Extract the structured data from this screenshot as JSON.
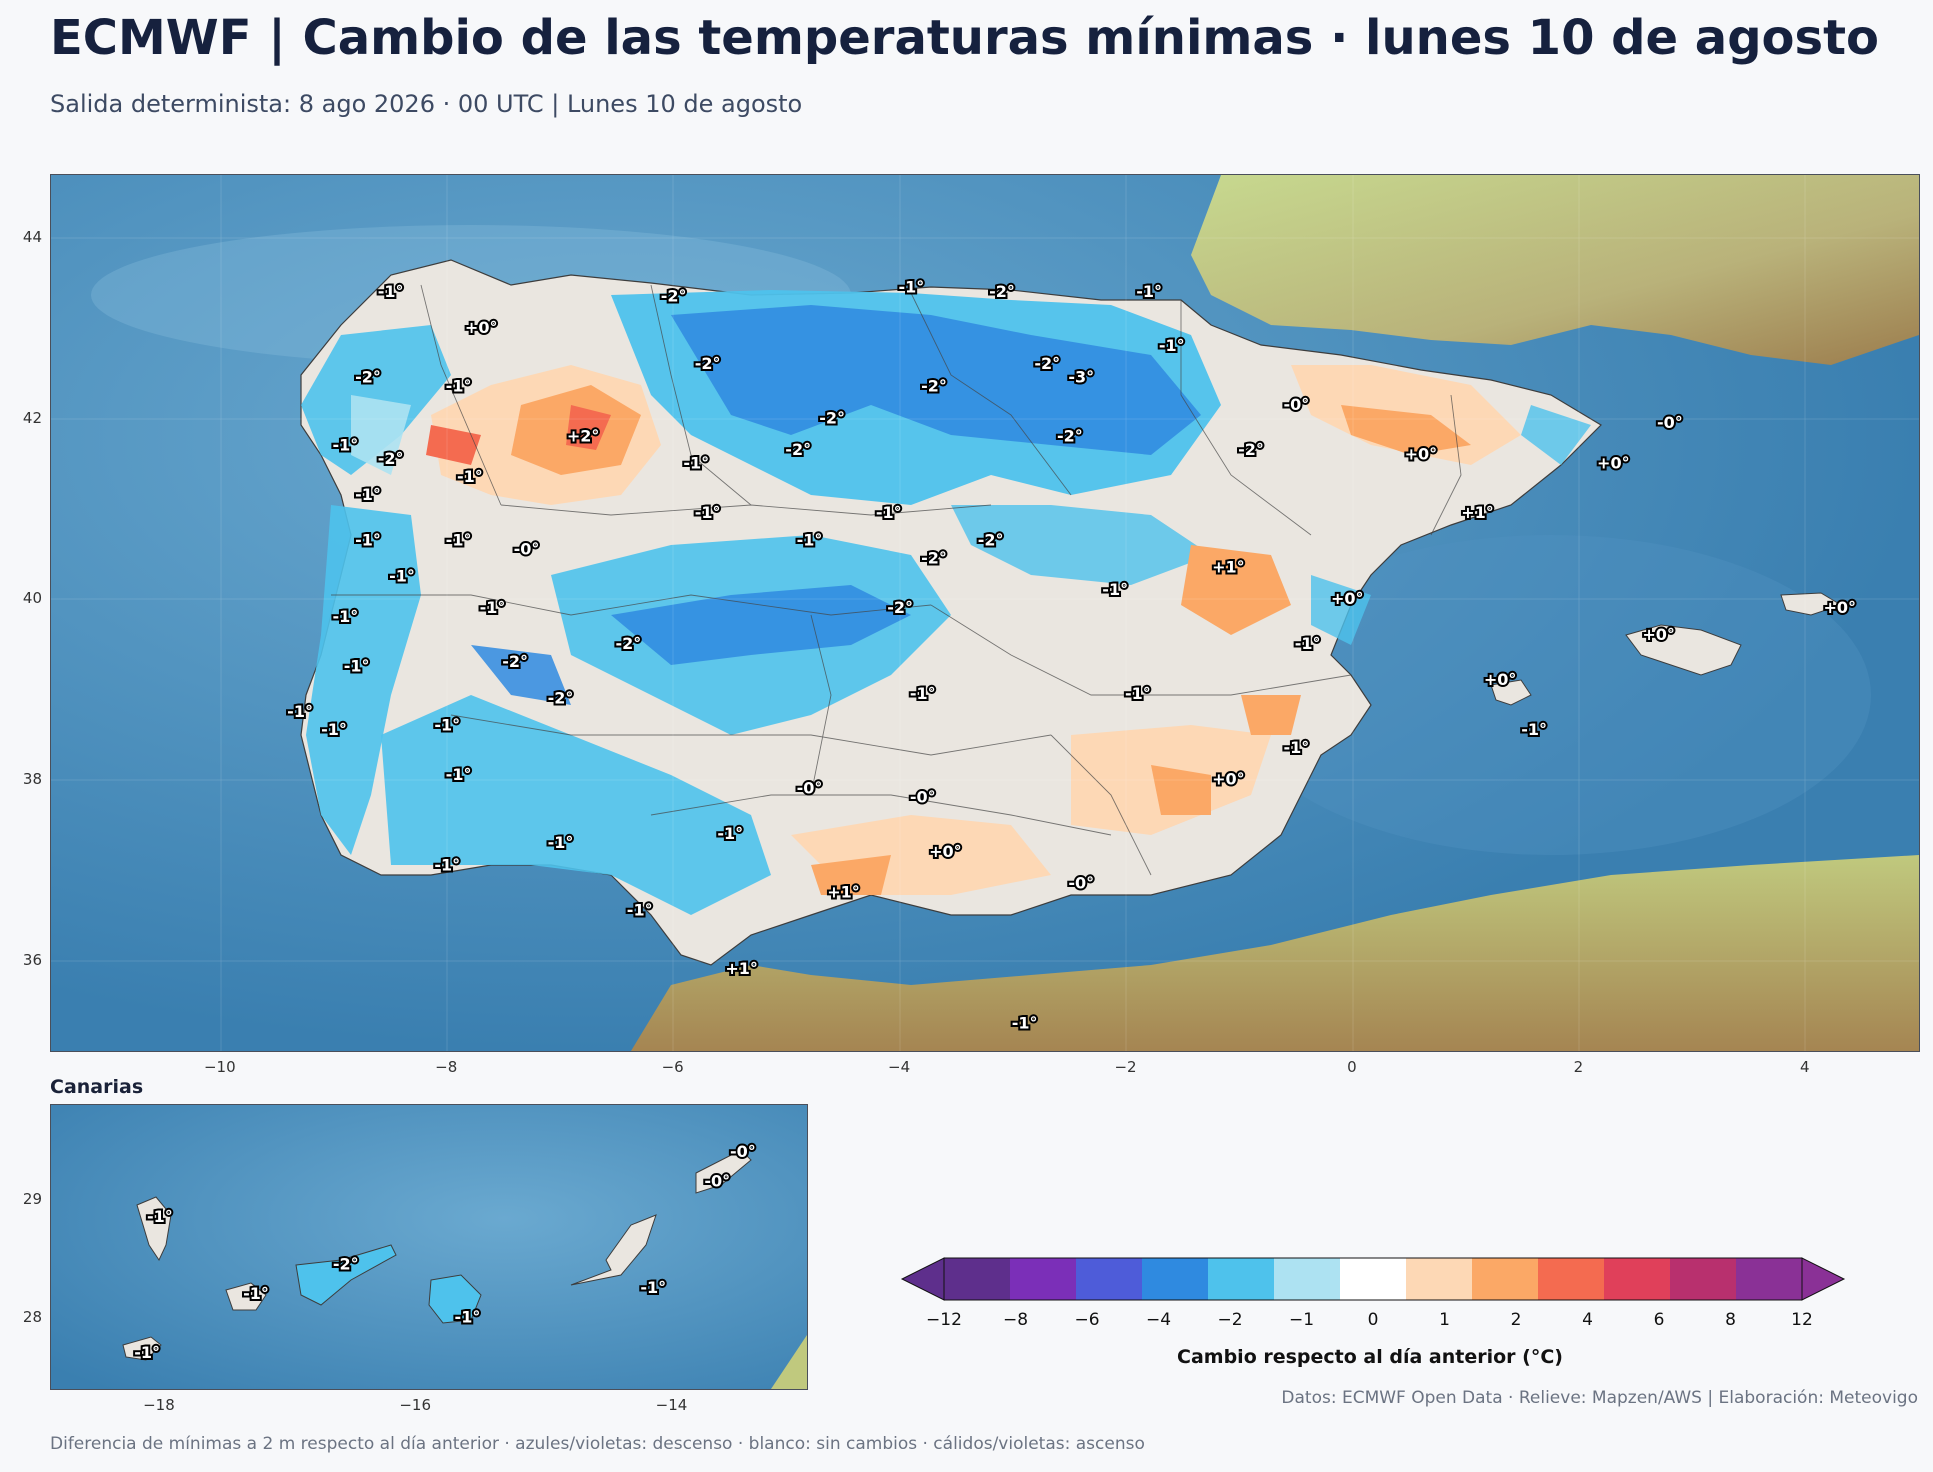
{
  "title": "ECMWF | Cambio de las temperaturas mínimas · lunes 10 de agosto",
  "subtitle": "Salida determinista: 8 ago 2026 · 00 UTC  |  Lunes 10 de agosto",
  "main_map": {
    "lon_ticks": [
      "−10",
      "−8",
      "−6",
      "−4",
      "−2",
      "0",
      "2",
      "4"
    ],
    "lat_ticks": [
      "44",
      "42",
      "40",
      "38",
      "36"
    ],
    "lon_range": [
      -11.5,
      5.0
    ],
    "lat_range": [
      35.0,
      44.7
    ],
    "labels": [
      {
        "t": "-1°",
        "lon": -8.5,
        "lat": 43.4
      },
      {
        "t": "+0°",
        "lon": -7.7,
        "lat": 43.0
      },
      {
        "t": "-2°",
        "lon": -6.0,
        "lat": 43.35
      },
      {
        "t": "-1°",
        "lon": -3.9,
        "lat": 43.45
      },
      {
        "t": "-2°",
        "lon": -3.1,
        "lat": 43.4
      },
      {
        "t": "-1°",
        "lon": -1.8,
        "lat": 43.4
      },
      {
        "t": "-2°",
        "lon": -8.7,
        "lat": 42.45
      },
      {
        "t": "-1°",
        "lon": -7.9,
        "lat": 42.35
      },
      {
        "t": "-2°",
        "lon": -5.7,
        "lat": 42.6
      },
      {
        "t": "-2°",
        "lon": -2.7,
        "lat": 42.6
      },
      {
        "t": "-3°",
        "lon": -2.4,
        "lat": 42.45
      },
      {
        "t": "-1°",
        "lon": -1.6,
        "lat": 42.8
      },
      {
        "t": "-2°",
        "lon": -3.7,
        "lat": 42.35
      },
      {
        "t": "-2°",
        "lon": -4.6,
        "lat": 42.0
      },
      {
        "t": "-0°",
        "lon": -0.5,
        "lat": 42.15
      },
      {
        "t": "-0°",
        "lon": 2.8,
        "lat": 41.95
      },
      {
        "t": "-1°",
        "lon": -8.9,
        "lat": 41.7
      },
      {
        "t": "-2°",
        "lon": -8.5,
        "lat": 41.55
      },
      {
        "t": "+2°",
        "lon": -6.8,
        "lat": 41.8
      },
      {
        "t": "-1°",
        "lon": -7.8,
        "lat": 41.35
      },
      {
        "t": "-1°",
        "lon": -5.8,
        "lat": 41.5
      },
      {
        "t": "-2°",
        "lon": -4.9,
        "lat": 41.65
      },
      {
        "t": "-2°",
        "lon": -2.5,
        "lat": 41.8
      },
      {
        "t": "-2°",
        "lon": -0.9,
        "lat": 41.65
      },
      {
        "t": "+0°",
        "lon": 0.6,
        "lat": 41.6
      },
      {
        "t": "+0°",
        "lon": 2.3,
        "lat": 41.5
      },
      {
        "t": "-1°",
        "lon": -8.7,
        "lat": 41.15
      },
      {
        "t": "-1°",
        "lon": -5.7,
        "lat": 40.95
      },
      {
        "t": "-1°",
        "lon": -4.1,
        "lat": 40.95
      },
      {
        "t": "+1°",
        "lon": 1.1,
        "lat": 40.95
      },
      {
        "t": "-1°",
        "lon": -8.7,
        "lat": 40.65
      },
      {
        "t": "-1°",
        "lon": -7.9,
        "lat": 40.65
      },
      {
        "t": "-0°",
        "lon": -7.3,
        "lat": 40.55
      },
      {
        "t": "-1°",
        "lon": -4.8,
        "lat": 40.65
      },
      {
        "t": "-2°",
        "lon": -3.2,
        "lat": 40.65
      },
      {
        "t": "-2°",
        "lon": -3.7,
        "lat": 40.45
      },
      {
        "t": "-1°",
        "lon": -8.4,
        "lat": 40.25
      },
      {
        "t": "+1°",
        "lon": -1.1,
        "lat": 40.35
      },
      {
        "t": "-1°",
        "lon": -2.1,
        "lat": 40.1
      },
      {
        "t": "+0°",
        "lon": -0.05,
        "lat": 40.0
      },
      {
        "t": "-1°",
        "lon": -8.9,
        "lat": 39.8
      },
      {
        "t": "-1°",
        "lon": -7.6,
        "lat": 39.9
      },
      {
        "t": "-2°",
        "lon": -4.0,
        "lat": 39.9
      },
      {
        "t": "-2°",
        "lon": -6.4,
        "lat": 39.5
      },
      {
        "t": "-1°",
        "lon": -0.4,
        "lat": 39.5
      },
      {
        "t": "+0°",
        "lon": 2.7,
        "lat": 39.6
      },
      {
        "t": "+0°",
        "lon": 4.3,
        "lat": 39.9
      },
      {
        "t": "-1°",
        "lon": -8.8,
        "lat": 39.25
      },
      {
        "t": "-2°",
        "lon": -7.4,
        "lat": 39.3
      },
      {
        "t": "-2°",
        "lon": -7.0,
        "lat": 38.9
      },
      {
        "t": "-1°",
        "lon": -3.8,
        "lat": 38.95
      },
      {
        "t": "-1°",
        "lon": -1.9,
        "lat": 38.95
      },
      {
        "t": "+0°",
        "lon": 1.3,
        "lat": 39.1
      },
      {
        "t": "-1°",
        "lon": -9.3,
        "lat": 38.75
      },
      {
        "t": "-1°",
        "lon": -9.0,
        "lat": 38.55
      },
      {
        "t": "-1°",
        "lon": -8.0,
        "lat": 38.6
      },
      {
        "t": "-1°",
        "lon": 1.6,
        "lat": 38.55
      },
      {
        "t": "-1°",
        "lon": -7.9,
        "lat": 38.05
      },
      {
        "t": "-0°",
        "lon": -4.8,
        "lat": 37.9
      },
      {
        "t": "-0°",
        "lon": -3.8,
        "lat": 37.8
      },
      {
        "t": "+0°",
        "lon": -1.1,
        "lat": 38.0
      },
      {
        "t": "-1°",
        "lon": -0.5,
        "lat": 38.35
      },
      {
        "t": "-1°",
        "lon": -7.0,
        "lat": 37.3
      },
      {
        "t": "-1°",
        "lon": -5.5,
        "lat": 37.4
      },
      {
        "t": "+0°",
        "lon": -3.6,
        "lat": 37.2
      },
      {
        "t": "-1°",
        "lon": -8.0,
        "lat": 37.05
      },
      {
        "t": "-0°",
        "lon": -2.4,
        "lat": 36.85
      },
      {
        "t": "+1°",
        "lon": -4.5,
        "lat": 36.75
      },
      {
        "t": "-1°",
        "lon": -6.3,
        "lat": 36.55
      },
      {
        "t": "+1°",
        "lon": -5.4,
        "lat": 35.9
      },
      {
        "t": "-1°",
        "lon": -2.9,
        "lat": 35.3
      }
    ]
  },
  "canarias": {
    "title": "Canarias",
    "lon_ticks": [
      "−18",
      "−16",
      "−14"
    ],
    "lat_ticks": [
      "29",
      "28"
    ],
    "lon_range": [
      -18.85,
      -12.95
    ],
    "lat_range": [
      27.4,
      29.8
    ],
    "labels": [
      {
        "t": "-1°",
        "lon": -18.0,
        "lat": 28.85
      },
      {
        "t": "-1°",
        "lon": -17.25,
        "lat": 28.2
      },
      {
        "t": "-2°",
        "lon": -16.55,
        "lat": 28.45
      },
      {
        "t": "-1°",
        "lon": -18.1,
        "lat": 27.7
      },
      {
        "t": "-1°",
        "lon": -15.6,
        "lat": 28.0
      },
      {
        "t": "-0°",
        "lon": -13.65,
        "lat": 29.15
      },
      {
        "t": "-0°",
        "lon": -13.45,
        "lat": 29.4
      },
      {
        "t": "-1°",
        "lon": -14.15,
        "lat": 28.25
      }
    ]
  },
  "colorbar": {
    "label": "Cambio respecto al día anterior (°C)",
    "ticks": [
      "−12",
      "−8",
      "−6",
      "−4",
      "−2",
      "−1",
      "0",
      "1",
      "2",
      "4",
      "6",
      "8",
      "12"
    ],
    "colors": [
      "#5e2f8c",
      "#7b2fb8",
      "#4e5cd9",
      "#2f8ae0",
      "#4ec2ec",
      "#ade2f2",
      "#ffffff",
      "#fdd8b5",
      "#fba866",
      "#f46b50",
      "#e0405a",
      "#b8306e",
      "#8a3196"
    ]
  },
  "credits": "Datos: ECMWF Open Data · Relieve: Mapzen/AWS  |  Elaboración: Meteovigo",
  "footnote": "Diferencia de mínimas a 2 m respecto al día anterior · azules/violetas: descenso · blanco: sin cambios · cálidos/violetas: ascenso"
}
